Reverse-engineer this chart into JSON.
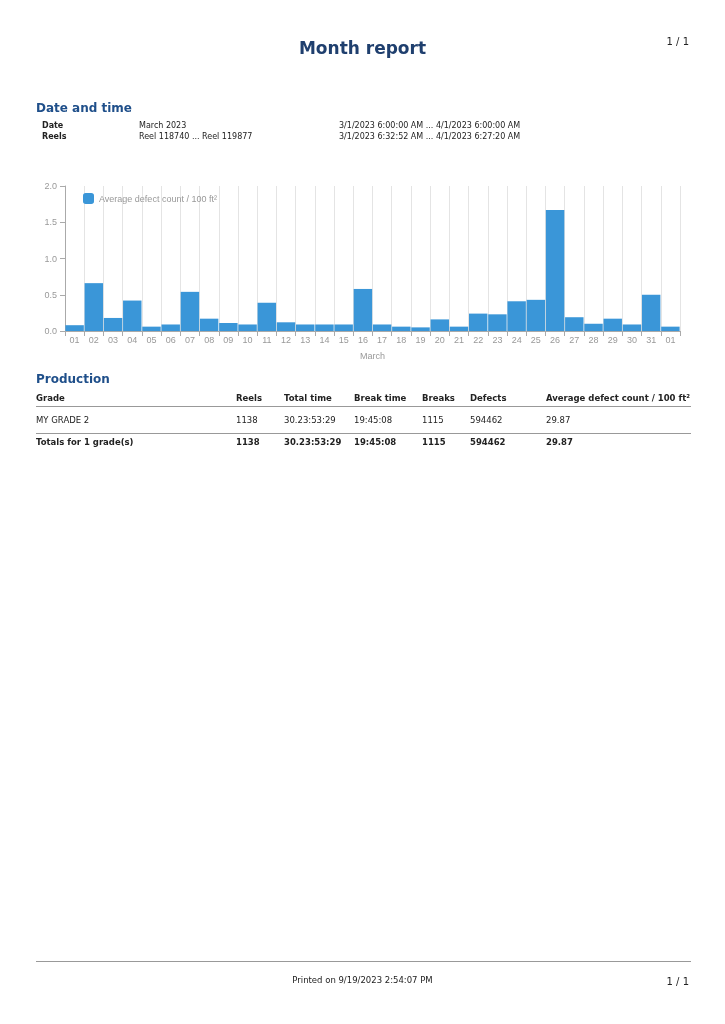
{
  "chart_data": {
    "type": "bar",
    "title": "Month report",
    "categories": [
      "01",
      "02",
      "03",
      "04",
      "05",
      "06",
      "07",
      "08",
      "09",
      "10",
      "11",
      "12",
      "13",
      "14",
      "15",
      "16",
      "17",
      "18",
      "19",
      "20",
      "21",
      "22",
      "23",
      "24",
      "25",
      "26",
      "27",
      "28",
      "29",
      "30",
      "31",
      "01"
    ],
    "series": [
      {
        "name": "Average defect count / 100 ft²",
        "color": "#3a96d8",
        "values": [
          0.08,
          0.66,
          0.18,
          0.42,
          0.06,
          0.09,
          0.54,
          0.17,
          0.11,
          0.09,
          0.39,
          0.12,
          0.09,
          0.09,
          0.09,
          0.58,
          0.09,
          0.06,
          0.05,
          0.16,
          0.06,
          0.24,
          0.23,
          0.41,
          0.43,
          1.67,
          0.19,
          0.1,
          0.17,
          0.09,
          0.5,
          0.06
        ]
      }
    ],
    "xlabel": "March",
    "ylim": [
      0,
      2
    ],
    "yticks": [
      {
        "value": 0,
        "label": "0.0"
      },
      {
        "value": 0.5,
        "label": "0.5"
      },
      {
        "value": 1,
        "label": "1.0"
      },
      {
        "value": 1.5,
        "label": "1.5"
      },
      {
        "value": 2,
        "label": "2.0"
      }
    ],
    "grid": "x",
    "legend": "top left",
    "annotations": [
      "1 / 1",
      "Date and time",
      "Date",
      "March 2023",
      "3/1/2023 6:00:00 AM ... 4/1/2023 6:00:00 AM",
      "Reels",
      "Reel 118740 ... Reel 119877",
      "3/1/2023 6:32:52 AM ... 4/1/2023 6:27:20 AM",
      "Production",
      "Grade",
      "Reels",
      "Total time",
      "Break time",
      "Breaks",
      "Defects",
      "Average defect count / 100 ft²",
      "MY GRADE 2",
      "1138",
      "30.23:53:29",
      "19:45:08",
      "1115",
      "594462",
      "29.87",
      "Totals for 1 grade(s)",
      "1138",
      "30.23:53:29",
      "19:45:08",
      "1115",
      "594462",
      "29.87",
      "Printed on 9/19/2023 2:54:07 PM",
      "1 / 1"
    ]
  }
}
